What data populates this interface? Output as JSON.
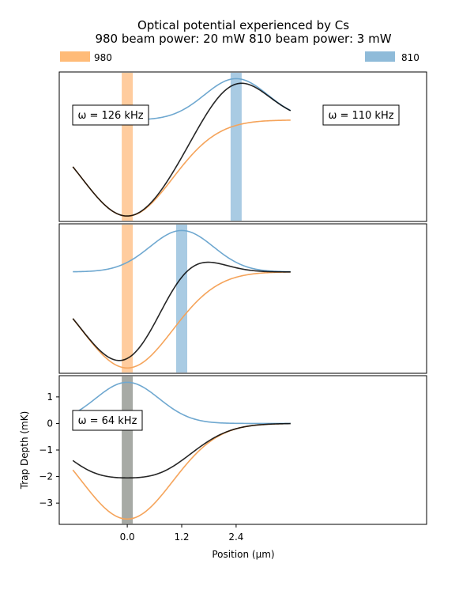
{
  "chart_data": {
    "type": "line",
    "title": "Optical potential experienced by Cs",
    "subtitle": "980 beam power: 20 mW   810 beam power: 3 mW",
    "legend": [
      {
        "name": "980",
        "color": "#ffbb78"
      },
      {
        "name": "810",
        "color": "#8fbbd9"
      }
    ],
    "xlabel": "Position (μm)",
    "ylabel": "Trap Depth (mK)",
    "xlim": [
      -1.5,
      6.6
    ],
    "xticks": [
      "0.0",
      "1.2",
      "2.4"
    ],
    "xtick_values": [
      0.0,
      1.2,
      2.4
    ],
    "panels": [
      {
        "beam980_center": 0.0,
        "beam810_center": 2.4,
        "ylim": [
          -3.8,
          1.8
        ],
        "show_yticks": false,
        "annotations": [
          "ω = 126 kHz",
          "ω = 110 kHz"
        ],
        "series": [
          {
            "name": "980",
            "color": "#f5a45b",
            "depth": -3.6,
            "center": 0.0,
            "width": 1.0
          },
          {
            "name": "810",
            "color": "#6fa8d0",
            "depth": 1.55,
            "center": 2.4,
            "width": 0.7
          },
          {
            "name": "total",
            "color": "#000000"
          }
        ]
      },
      {
        "beam980_center": 0.0,
        "beam810_center": 1.2,
        "ylim": [
          -3.8,
          1.8
        ],
        "show_yticks": false,
        "annotations": [],
        "series": [
          {
            "name": "980",
            "color": "#f5a45b",
            "depth": -3.6,
            "center": 0.0,
            "width": 1.0
          },
          {
            "name": "810",
            "color": "#6fa8d0",
            "depth": 1.55,
            "center": 1.2,
            "width": 0.7
          },
          {
            "name": "total",
            "color": "#000000"
          }
        ]
      },
      {
        "beam980_center": 0.0,
        "beam810_center": 0.0,
        "ylim": [
          -3.8,
          1.8
        ],
        "show_yticks": true,
        "yticks": [
          "1",
          "0",
          "−1",
          "−2",
          "−3"
        ],
        "ytick_values": [
          1,
          0,
          -1,
          -2,
          -3
        ],
        "annotations": [
          "ω = 64 kHz"
        ],
        "series": [
          {
            "name": "980",
            "color": "#f5a45b",
            "depth": -3.6,
            "center": 0.0,
            "width": 1.0
          },
          {
            "name": "810",
            "color": "#6fa8d0",
            "depth": 1.55,
            "center": 0.0,
            "width": 0.7
          },
          {
            "name": "total",
            "color": "#000000"
          }
        ]
      }
    ],
    "x_start": -1.2,
    "x_end": 3.6,
    "grid": false,
    "legend_placement": "top"
  }
}
